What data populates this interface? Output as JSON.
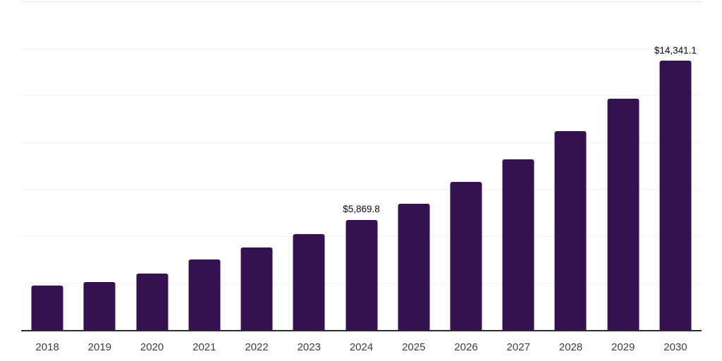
{
  "chart_data": {
    "type": "bar",
    "title": "",
    "xlabel": "",
    "ylabel": "",
    "categories": [
      "2018",
      "2019",
      "2020",
      "2021",
      "2022",
      "2023",
      "2024",
      "2025",
      "2026",
      "2027",
      "2028",
      "2029",
      "2030"
    ],
    "values": [
      2350,
      2540,
      2990,
      3770,
      4400,
      5090,
      5869.8,
      6730,
      7870,
      9100,
      10600,
      12310,
      14341.1
    ],
    "data_labels": [
      {
        "category": "2024",
        "text": "$5,869.8"
      },
      {
        "category": "2030",
        "text": "$14,341.1"
      }
    ],
    "ylim": [
      0,
      17500
    ],
    "gridline_step": 2500,
    "grid": "horizontal",
    "y_axis_labels_visible": false,
    "legend_position": "none",
    "colors": {
      "bar": "#36114f",
      "gridline": "#f2f2f2",
      "top_gridline": "#e5e5e5",
      "axis_line": "#2b2b2b",
      "value_label": "#0a0a0a",
      "tick_label": "#3d3d3d",
      "background": "#ffffff"
    }
  }
}
